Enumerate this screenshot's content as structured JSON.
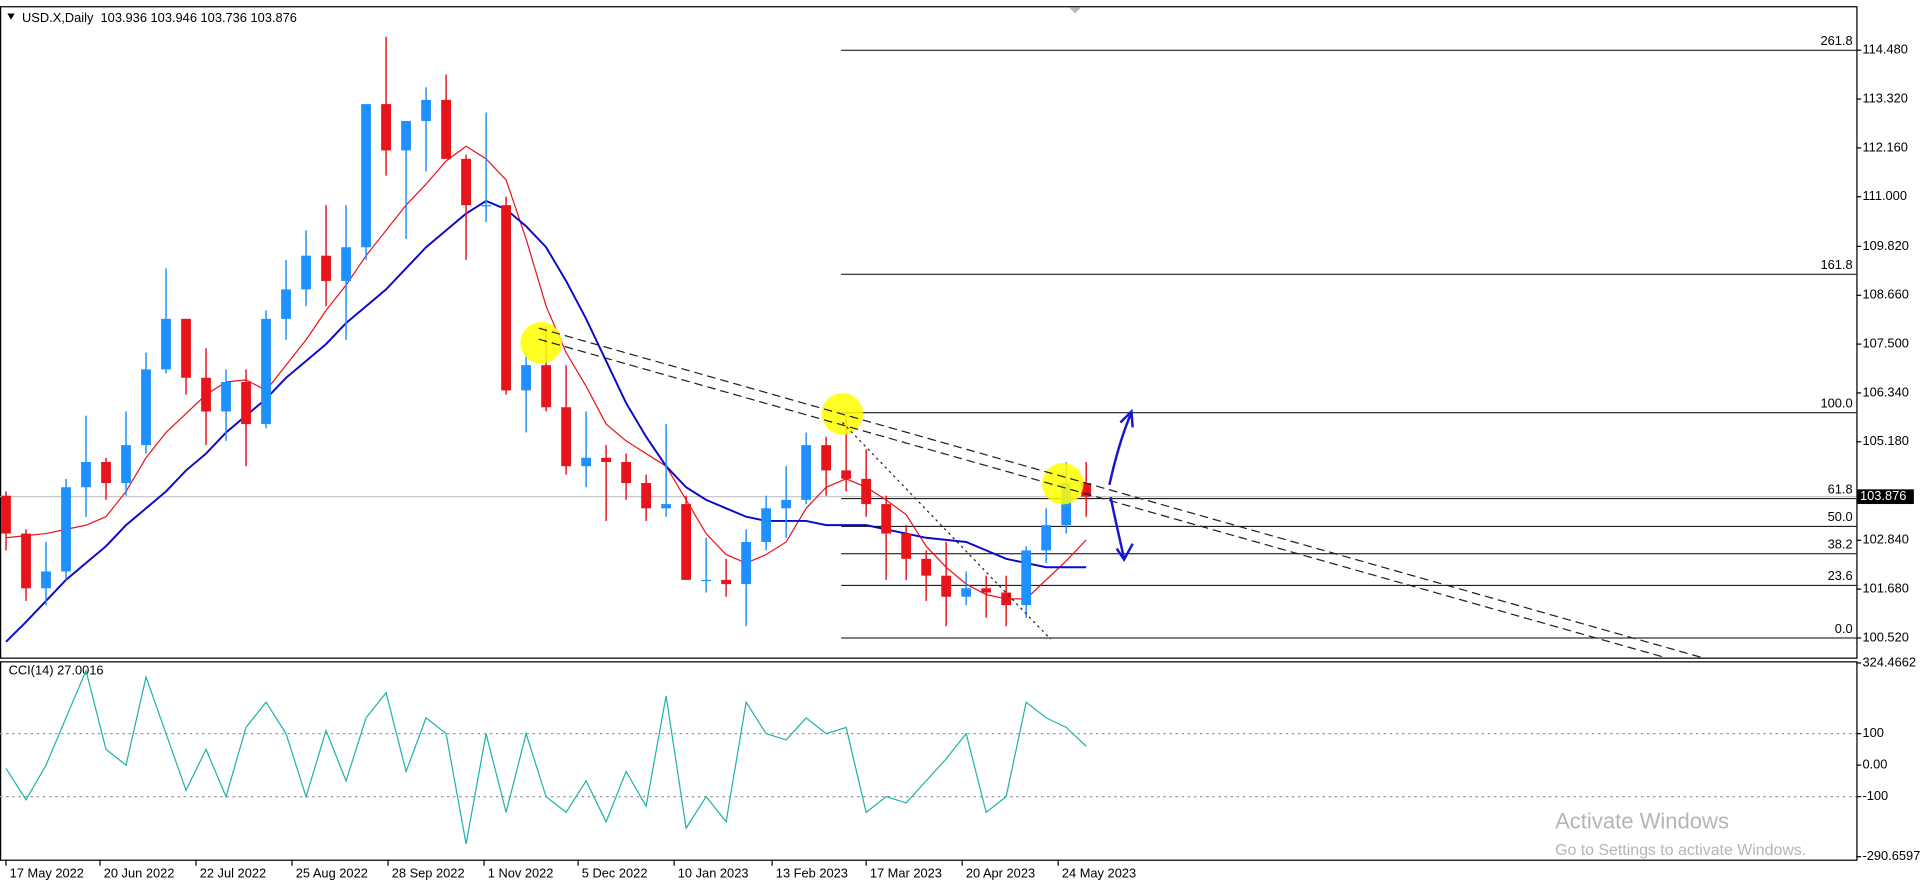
{
  "chart_data": [
    {
      "type": "candlestick",
      "title": "USD.X,Daily  103.936 103.946 103.736 103.876",
      "open": [
        103.9,
        103.0,
        101.7,
        102.1,
        104.1,
        104.7,
        104.2,
        105.1,
        106.9,
        108.1,
        106.7,
        105.9,
        106.6,
        105.6,
        108.1,
        108.8,
        109.6,
        109.0,
        109.8,
        113.2,
        112.1,
        112.8,
        113.3,
        111.9,
        110.8,
        110.8,
        106.4,
        107.0,
        106.0,
        104.6,
        104.8,
        104.7,
        104.2,
        103.6,
        103.7,
        101.9,
        101.9,
        101.8,
        102.8,
        103.6,
        103.8,
        105.1,
        104.5,
        104.3,
        103.7,
        103.0,
        102.4,
        102.0,
        101.5,
        101.7,
        101.6,
        101.3,
        102.6,
        103.2,
        104.2
      ],
      "high": [
        104.0,
        103.1,
        102.8,
        104.3,
        105.8,
        104.8,
        105.9,
        107.3,
        109.3,
        108.1,
        107.4,
        106.9,
        106.9,
        108.3,
        109.5,
        110.2,
        110.8,
        110.8,
        113.2,
        114.8,
        112.7,
        113.6,
        113.9,
        112.0,
        113.0,
        111.0,
        107.3,
        107.9,
        107.0,
        105.9,
        105.1,
        104.9,
        104.4,
        105.6,
        103.9,
        102.9,
        102.4,
        103.1,
        103.9,
        104.6,
        105.4,
        105.3,
        105.8,
        105.0,
        103.9,
        103.2,
        102.6,
        102.8,
        102.1,
        102.0,
        102.0,
        102.7,
        103.6,
        104.7,
        104.7
      ],
      "low": [
        102.6,
        101.4,
        101.3,
        101.9,
        103.4,
        103.8,
        103.9,
        104.9,
        106.8,
        106.3,
        105.1,
        105.2,
        104.6,
        105.5,
        107.6,
        108.4,
        108.4,
        107.6,
        109.5,
        111.5,
        110.0,
        111.6,
        111.9,
        109.5,
        110.4,
        106.3,
        105.4,
        105.9,
        104.4,
        104.1,
        103.3,
        103.8,
        103.3,
        103.4,
        101.9,
        101.6,
        101.5,
        100.8,
        102.6,
        102.9,
        103.7,
        103.9,
        104.0,
        103.4,
        101.9,
        101.9,
        101.4,
        100.8,
        101.3,
        101.0,
        100.8,
        101.0,
        102.3,
        103.0,
        103.4
      ],
      "close": [
        103.0,
        101.7,
        102.1,
        104.1,
        104.7,
        104.2,
        105.1,
        106.9,
        108.1,
        106.7,
        105.9,
        106.6,
        105.6,
        108.1,
        108.8,
        109.6,
        109.0,
        109.8,
        113.2,
        112.1,
        112.8,
        113.3,
        111.9,
        110.8,
        110.8,
        106.4,
        107.0,
        106.0,
        104.6,
        104.8,
        104.7,
        104.2,
        103.6,
        103.7,
        101.9,
        101.9,
        101.8,
        102.8,
        103.6,
        103.8,
        105.1,
        104.5,
        104.3,
        103.7,
        103.0,
        102.4,
        102.0,
        101.5,
        101.7,
        101.6,
        101.3,
        102.6,
        103.2,
        104.2,
        103.876
      ],
      "up_color": "#1e90ff",
      "down_color": "#e8141c",
      "ma_lines": [
        {
          "color": "#e8141c",
          "values": [
            102.9,
            102.95,
            103.0,
            103.1,
            103.2,
            103.4,
            104.0,
            104.8,
            105.4,
            105.85,
            106.3,
            106.6,
            106.65,
            106.4,
            107.0,
            107.6,
            108.3,
            108.9,
            109.6,
            110.2,
            110.8,
            111.3,
            111.85,
            112.2,
            111.9,
            111.4,
            110.0,
            108.4,
            107.3,
            106.5,
            105.6,
            105.2,
            104.9,
            104.6,
            103.8,
            103.0,
            102.5,
            102.3,
            102.5,
            102.8,
            103.6,
            104.1,
            104.3,
            104.1,
            103.8,
            103.45,
            102.7,
            102.2,
            101.8,
            101.55,
            101.45,
            101.45,
            101.9,
            102.35,
            102.85
          ]
        },
        {
          "color": "#0a0ac8",
          "values": [
            100.43,
            100.9,
            101.4,
            101.9,
            102.3,
            102.7,
            103.2,
            103.6,
            104.0,
            104.5,
            104.9,
            105.4,
            105.8,
            106.2,
            106.7,
            107.1,
            107.5,
            108.0,
            108.4,
            108.8,
            109.3,
            109.8,
            110.2,
            110.6,
            110.9,
            110.7,
            110.3,
            109.8,
            109.0,
            108.1,
            107.1,
            106.1,
            105.3,
            104.6,
            104.1,
            103.8,
            103.6,
            103.4,
            103.3,
            103.3,
            103.3,
            103.2,
            103.2,
            103.2,
            103.1,
            103.0,
            102.9,
            102.85,
            102.8,
            102.6,
            102.4,
            102.3,
            102.2,
            102.2,
            102.2
          ]
        }
      ],
      "last_price": 103.876,
      "fib_levels": [
        {
          "value": 114.48,
          "label": "261.8"
        },
        {
          "value": 109.16,
          "label": "161.8"
        },
        {
          "value": 105.87,
          "label": "100.0"
        },
        {
          "value": 103.83,
          "label": "61.8"
        },
        {
          "value": 103.17,
          "label": "50.0"
        },
        {
          "value": 102.52,
          "label": "38.2"
        },
        {
          "value": 101.77,
          "label": "23.6"
        },
        {
          "value": 100.52,
          "label": "0.0"
        }
      ],
      "xlim": [
        -0.3,
        92.5
      ],
      "ylim": [
        100.055,
        115.527
      ],
      "yticks": [
        {
          "value": 114.48,
          "label": "114.480"
        },
        {
          "value": 113.32,
          "label": "113.320"
        },
        {
          "value": 112.16,
          "label": "112.160"
        },
        {
          "value": 111.0,
          "label": "111.000"
        },
        {
          "value": 109.82,
          "label": "109.820"
        },
        {
          "value": 108.66,
          "label": "108.660"
        },
        {
          "value": 107.5,
          "label": "107.500"
        },
        {
          "value": 106.34,
          "label": "106.340"
        },
        {
          "value": 105.18,
          "label": "105.180"
        },
        {
          "value": 102.84,
          "label": "102.840"
        },
        {
          "value": 101.68,
          "label": "101.680"
        },
        {
          "value": 100.52,
          "label": "100.520"
        }
      ],
      "xticks": [
        {
          "value": 0,
          "label": "17 May 2022"
        },
        {
          "value": 4.7,
          "label": "20 Jun 2022"
        },
        {
          "value": 9.5,
          "label": "22 Jul 2022"
        },
        {
          "value": 14.3,
          "label": "25 Aug 2022"
        },
        {
          "value": 19.1,
          "label": "28 Sep 2022"
        },
        {
          "value": 23.9,
          "label": "1 Nov 2022"
        },
        {
          "value": 28.6,
          "label": "5 Dec 2022"
        },
        {
          "value": 33.4,
          "label": "10 Jan 2023"
        },
        {
          "value": 38.3,
          "label": "13 Feb 2023"
        },
        {
          "value": 43.0,
          "label": "17 Mar 2023"
        },
        {
          "value": 47.8,
          "label": "20 Apr 2023"
        },
        {
          "value": 52.6,
          "label": "24 May 2023"
        }
      ]
    },
    {
      "type": "line",
      "title": "CCI(14) 27.0016",
      "color": "#20b2aa",
      "values": [
        -10,
        -110,
        0,
        150,
        300,
        50,
        0,
        280,
        100,
        -80,
        50,
        -100,
        120,
        200,
        100,
        -100,
        110,
        -50,
        150,
        230,
        -20,
        150,
        100,
        -250,
        100,
        -150,
        100,
        -100,
        -150,
        -50,
        -180,
        -20,
        -130,
        220,
        -200,
        -100,
        -180,
        200,
        100,
        80,
        150,
        100,
        120,
        -150,
        -100,
        -120,
        -50,
        20,
        100,
        -150,
        -100,
        200,
        150,
        120,
        60
      ],
      "xlim": [
        -0.3,
        92.5
      ],
      "ylim": [
        -300,
        330
      ],
      "yticks": [
        324.4662,
        100,
        {
          "value": 0,
          "label": "0.00"
        },
        -100,
        -290.6597
      ],
      "levels": [
        100,
        -100
      ]
    }
  ],
  "watermark": {
    "title": "Activate Windows",
    "subtitle": "Go to Settings to activate Windows."
  }
}
